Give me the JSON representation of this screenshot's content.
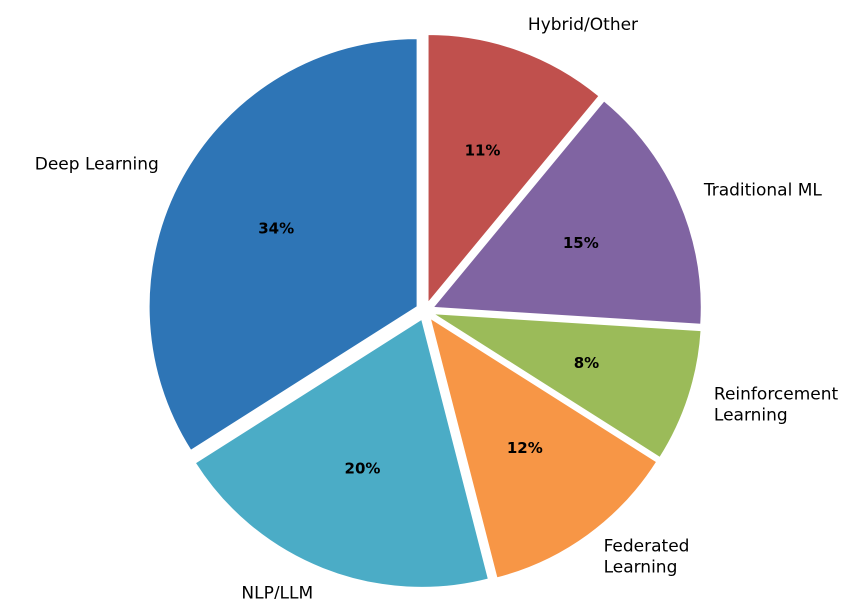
{
  "chart_data": {
    "type": "pie",
    "categories": [
      "Deep Learning",
      "NLP/LLM",
      "Federated\nLearning",
      "Reinforcement\nLearning",
      "Traditional ML",
      "Hybrid/Other"
    ],
    "values": [
      34,
      20,
      12,
      8,
      15,
      11
    ],
    "value_labels": [
      "34%",
      "20%",
      "12%",
      "8%",
      "15%",
      "11%"
    ],
    "colors": [
      "#2e75b6",
      "#4bacc6",
      "#f79646",
      "#9bbb59",
      "#8064a2",
      "#c0504d"
    ]
  }
}
